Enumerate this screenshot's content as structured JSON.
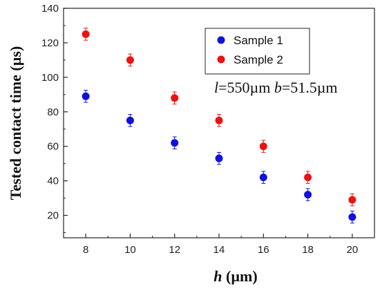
{
  "chart_data": {
    "type": "scatter",
    "title": "",
    "xlabel_var": "h",
    "xlabel_unit": " (µm)",
    "ylabel": "Tested contact time (µs)",
    "xlim": [
      7,
      21
    ],
    "ylim": [
      7,
      140
    ],
    "x_ticks": [
      8,
      10,
      12,
      14,
      16,
      18,
      20
    ],
    "y_ticks": [
      20,
      40,
      60,
      80,
      100,
      120,
      140
    ],
    "grid": false,
    "legend_position": "top-right",
    "series": [
      {
        "name": "Sample 1",
        "color": "#1010e0",
        "x": [
          8,
          10,
          12,
          14,
          16,
          18,
          20
        ],
        "y": [
          89,
          75,
          62,
          53,
          42,
          32,
          19
        ],
        "error": [
          3.5,
          3.5,
          3.5,
          3.5,
          3.5,
          3.5,
          3.5
        ]
      },
      {
        "name": "Sample 2",
        "color": "#ee1111",
        "x": [
          8,
          10,
          12,
          14,
          16,
          18,
          20
        ],
        "y": [
          125,
          110,
          88,
          75,
          60,
          42,
          29
        ],
        "error": [
          3.5,
          3.5,
          3.5,
          3.5,
          3.5,
          3.5,
          3.5
        ]
      }
    ],
    "annotation": {
      "l_var": "l",
      "l_value": "=550µm ",
      "b_var": "b",
      "b_value": "=51.5µm"
    }
  }
}
